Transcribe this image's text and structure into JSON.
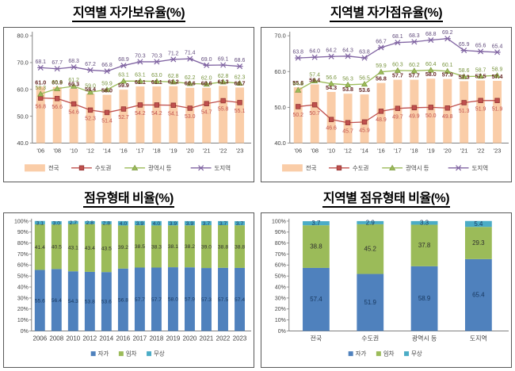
{
  "page": {
    "background": "#ffffff"
  },
  "charts": [
    {
      "id": "ownership-rate-by-region",
      "type": "bar-line",
      "title": "지역별 자가보유율(%)",
      "x": [
        "'06",
        "'08",
        "'10",
        "'12",
        "'14",
        "'16",
        "'17",
        "'18",
        "'19",
        "'20",
        "'21",
        "'22",
        "'23"
      ],
      "ylim": [
        40,
        80
      ],
      "yticks": [
        {
          "v": 80,
          "label": "80.0"
        },
        {
          "v": 70,
          "label": "70.0"
        },
        {
          "v": 60,
          "label": "60.0"
        },
        {
          "v": 50,
          "label": "50.0"
        },
        {
          "v": 40,
          "label": "40.0"
        }
      ],
      "bar_series": {
        "name": "전국",
        "color": "#FACDA8",
        "label_color": "#632423",
        "values": [
          61.0,
          60.9,
          60.3,
          58.4,
          58.0,
          59.9,
          61.1,
          61.1,
          61.2,
          60.6,
          60.6,
          61.3,
          60.7
        ]
      },
      "line_series": [
        {
          "name": "수도권",
          "color": "#C0504D",
          "marker": "square",
          "label_color": "#C0504D",
          "label_side": "below",
          "values": [
            56.8,
            56.6,
            54.6,
            52.3,
            51.4,
            52.7,
            54.2,
            54.2,
            54.1,
            53.0,
            54.7,
            55.8,
            55.1
          ]
        },
        {
          "name": "광역시 등",
          "color": "#9BBB59",
          "marker": "triangle",
          "label_color": "#77933C",
          "label_side": "above",
          "values": [
            58.3,
            60.3,
            61.2,
            59.0,
            59.9,
            63.1,
            63.1,
            63.0,
            62.8,
            62.2,
            62.0,
            62.8,
            62.3
          ]
        },
        {
          "name": "도지역",
          "color": "#8064A2",
          "marker": "x",
          "label_color": "#604A7B",
          "label_side": "above",
          "values": [
            68.1,
            67.7,
            68.3,
            67.2,
            66.8,
            68.9,
            70.3,
            70.3,
            71.2,
            71.4,
            69.0,
            69.1,
            68.6
          ]
        }
      ]
    },
    {
      "id": "occupancy-rate-by-region",
      "type": "bar-line",
      "title": "지역별 자가점유율(%)",
      "x": [
        "'06",
        "'08",
        "'10",
        "'12",
        "'14",
        "'16",
        "'17",
        "'18",
        "'19",
        "'20",
        "'21",
        "'22",
        "'23"
      ],
      "ylim": [
        40,
        70
      ],
      "yticks": [
        {
          "v": 70,
          "label": "70.0"
        },
        {
          "v": 60,
          "label": "60.0"
        },
        {
          "v": 50,
          "label": "50.0"
        },
        {
          "v": 40,
          "label": "40.0"
        }
      ],
      "bar_series": {
        "name": "전국",
        "color": "#FACDA8",
        "label_color": "#632423",
        "values": [
          55.6,
          56.4,
          54.3,
          53.8,
          53.6,
          56.8,
          57.7,
          57.7,
          58.0,
          57.9,
          57.3,
          57.5,
          57.4
        ]
      },
      "line_series": [
        {
          "name": "수도권",
          "color": "#C0504D",
          "marker": "square",
          "label_color": "#C0504D",
          "label_side": "below",
          "values": [
            50.2,
            50.7,
            46.6,
            45.7,
            45.9,
            48.9,
            49.7,
            49.9,
            50.0,
            49.8,
            51.3,
            51.9,
            51.9
          ]
        },
        {
          "name": "광역시 등",
          "color": "#9BBB59",
          "marker": "triangle",
          "label_color": "#77933C",
          "label_side": "above",
          "values": [
            54.8,
            57.4,
            56.6,
            56.3,
            56.5,
            59.9,
            60.3,
            60.2,
            60.4,
            60.1,
            58.6,
            58.7,
            58.9
          ]
        },
        {
          "name": "도지역",
          "color": "#8064A2",
          "marker": "x",
          "label_color": "#604A7B",
          "label_side": "above",
          "values": [
            63.8,
            64.0,
            64.2,
            64.3,
            63.8,
            66.7,
            68.1,
            68.3,
            68.8,
            69.2,
            65.9,
            65.6,
            65.4
          ]
        }
      ]
    },
    {
      "id": "tenure-type-ratio",
      "type": "stacked-bar",
      "title": "점유형태 비율(%)",
      "categories": [
        "2006",
        "2008",
        "2010",
        "2012",
        "2014",
        "2016",
        "2017",
        "2018",
        "2019",
        "2020",
        "2021",
        "2022",
        "2023"
      ],
      "yticks": [
        {
          "v": 100,
          "label": "100%"
        },
        {
          "v": 90,
          "label": "90%"
        },
        {
          "v": 80,
          "label": "80%"
        },
        {
          "v": 70,
          "label": "70%"
        },
        {
          "v": 60,
          "label": "60%"
        },
        {
          "v": 50,
          "label": "50%"
        },
        {
          "v": 40,
          "label": "40%"
        },
        {
          "v": 30,
          "label": "30%"
        },
        {
          "v": 20,
          "label": "20%"
        },
        {
          "v": 10,
          "label": "10%"
        },
        {
          "v": 0,
          "label": "0%"
        }
      ],
      "series": [
        {
          "name": "자가",
          "color": "#4F81BD",
          "label_color": "#17375E",
          "values": [
            55.6,
            56.4,
            54.3,
            53.8,
            53.6,
            56.8,
            57.7,
            57.7,
            58.0,
            57.9,
            57.3,
            57.5,
            57.4
          ]
        },
        {
          "name": "임차",
          "color": "#9BBB59",
          "label_color": "#2E2E2E",
          "values": [
            41.4,
            40.5,
            43.1,
            43.4,
            43.5,
            39.2,
            38.5,
            38.3,
            38.1,
            38.2,
            39.0,
            38.8,
            38.8
          ]
        },
        {
          "name": "무상",
          "color": "#4BACC6",
          "label_color": "#17375E",
          "values": [
            3.1,
            3.0,
            2.7,
            2.8,
            2.8,
            4.0,
            3.9,
            4.0,
            3.9,
            3.9,
            3.7,
            3.7,
            3.7
          ]
        }
      ]
    },
    {
      "id": "tenure-type-ratio-by-region",
      "type": "stacked-bar",
      "title": "지역별 점유형태 비율(%)",
      "categories": [
        "전국",
        "수도권",
        "광역시 등",
        "도지역"
      ],
      "yticks": [
        {
          "v": 100,
          "label": "100%"
        },
        {
          "v": 90,
          "label": "90%"
        },
        {
          "v": 80,
          "label": "80%"
        },
        {
          "v": 70,
          "label": "70%"
        },
        {
          "v": 60,
          "label": "60%"
        },
        {
          "v": 50,
          "label": "50%"
        },
        {
          "v": 40,
          "label": "40%"
        },
        {
          "v": 30,
          "label": "30%"
        },
        {
          "v": 20,
          "label": "20%"
        },
        {
          "v": 10,
          "label": "10%"
        },
        {
          "v": 0,
          "label": "0%"
        }
      ],
      "series": [
        {
          "name": "자가",
          "color": "#4F81BD",
          "label_color": "#17375E",
          "values": [
            57.4,
            51.9,
            58.9,
            65.4
          ]
        },
        {
          "name": "임차",
          "color": "#9BBB59",
          "label_color": "#2E2E2E",
          "values": [
            38.8,
            45.2,
            37.8,
            29.3
          ]
        },
        {
          "name": "무상",
          "color": "#4BACC6",
          "label_color": "#17375E",
          "values": [
            3.7,
            2.9,
            3.3,
            5.4
          ]
        }
      ]
    }
  ],
  "style": {
    "axis_color": "#808080",
    "tick_text_color": "#404040",
    "legend_text_color": "#404040"
  }
}
